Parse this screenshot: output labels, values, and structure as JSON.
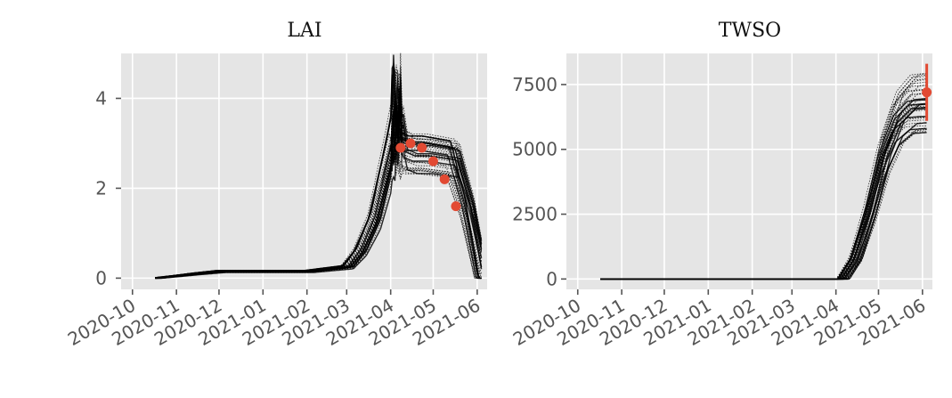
{
  "figure": {
    "background": "#ffffff",
    "panel_background": "#e5e5e5"
  },
  "chart_data": [
    {
      "type": "line",
      "title": "LAI",
      "xlabel": "",
      "ylabel": "",
      "x_ticks": [
        "2020-10",
        "2020-11",
        "2020-12",
        "2021-01",
        "2021-02",
        "2021-03",
        "2021-04",
        "2021-05",
        "2021-06"
      ],
      "y_ticks": [
        "0",
        "2",
        "4"
      ],
      "xlim": [
        "2020-09-23",
        "2021-06-08"
      ],
      "ylim": [
        -0.25,
        5.0
      ],
      "grid": true,
      "ensemble_color": "#000000",
      "ensemble_members": 40,
      "ensemble_mean": {
        "x": [
          "2020-10-17",
          "2020-11-01",
          "2020-11-15",
          "2020-12-01",
          "2021-01-01",
          "2021-02-01",
          "2021-03-01",
          "2021-03-10",
          "2021-03-20",
          "2021-04-01",
          "2021-04-05",
          "2021-04-08",
          "2021-04-15",
          "2021-04-25",
          "2021-05-05",
          "2021-05-15",
          "2021-05-25",
          "2021-06-01",
          "2021-06-04"
        ],
        "y": [
          0.0,
          0.05,
          0.1,
          0.15,
          0.15,
          0.15,
          0.25,
          0.6,
          1.3,
          2.9,
          3.5,
          2.9,
          2.8,
          2.8,
          2.75,
          2.7,
          1.6,
          0.5,
          0.0
        ]
      },
      "observations": {
        "color": "#e24a33",
        "x": [
          "2021-04-08",
          "2021-04-15",
          "2021-04-23",
          "2021-05-01",
          "2021-05-09",
          "2021-05-17"
        ],
        "y": [
          2.9,
          3.0,
          2.9,
          2.6,
          2.2,
          1.6
        ],
        "error": [
          0.1,
          0.1,
          0.1,
          0.1,
          0.05,
          0.05
        ]
      }
    },
    {
      "type": "line",
      "title": "TWSO",
      "xlabel": "",
      "ylabel": "",
      "x_ticks": [
        "2020-10",
        "2020-11",
        "2020-12",
        "2021-01",
        "2021-02",
        "2021-03",
        "2021-04",
        "2021-05",
        "2021-06"
      ],
      "y_ticks": [
        "0",
        "2500",
        "5000",
        "7500"
      ],
      "xlim": [
        "2020-09-23",
        "2021-06-08"
      ],
      "ylim": [
        -400,
        8700
      ],
      "grid": true,
      "ensemble_color": "#000000",
      "ensemble_members": 40,
      "ensemble_mean": {
        "x": [
          "2020-10-17",
          "2021-04-06",
          "2021-04-15",
          "2021-04-25",
          "2021-05-05",
          "2021-05-15",
          "2021-05-25",
          "2021-06-04"
        ],
        "y": [
          0,
          0,
          800,
          2600,
          4800,
          6200,
          6750,
          6800
        ]
      },
      "observations": {
        "color": "#e24a33",
        "x": [
          "2021-06-04"
        ],
        "y": [
          7200
        ],
        "error": [
          1100
        ]
      }
    }
  ]
}
